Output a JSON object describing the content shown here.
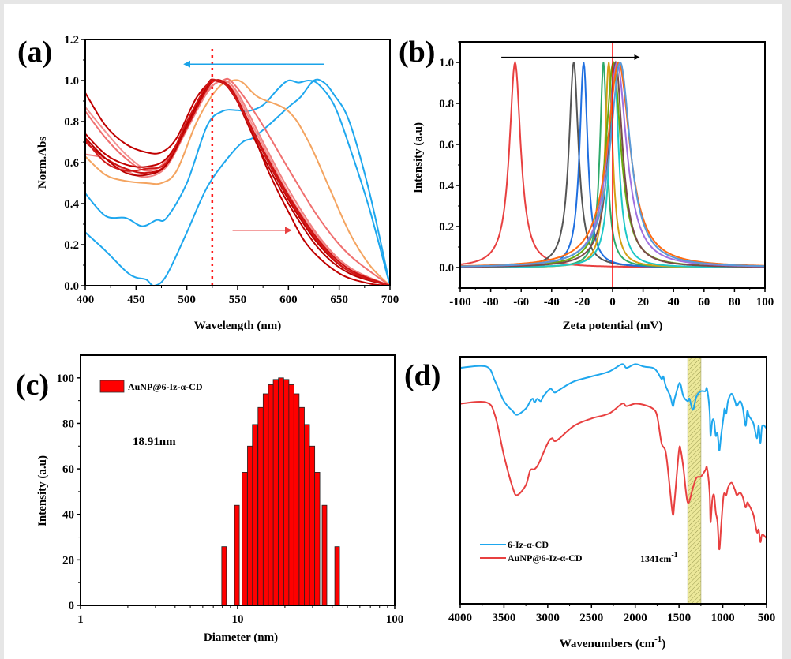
{
  "chart_data": [
    {
      "panel": "(a)",
      "type": "line",
      "title": "",
      "xlabel": "Wavelength (nm)",
      "ylabel": "Norm.Abs",
      "xlim": [
        400,
        700
      ],
      "ylim": [
        0.0,
        1.2
      ],
      "xticks": [
        400,
        450,
        500,
        550,
        600,
        650,
        700
      ],
      "yticks": [
        0.0,
        0.2,
        0.4,
        0.6,
        0.8,
        1.0,
        1.2
      ],
      "xtick_labels": [
        "400",
        "450",
        "500",
        "550",
        "600",
        "650",
        "700"
      ],
      "ytick_labels": [
        "0.0",
        "0.2",
        "0.4",
        "0.6",
        "0.8",
        "1.0",
        "1.2"
      ],
      "annotations": [
        {
          "type": "vline-dotted",
          "x": 525,
          "color": "#ff1a1a"
        },
        {
          "type": "arrow",
          "direction": "left",
          "from": [
            635,
            1.08
          ],
          "to": [
            500,
            1.08
          ],
          "color": "#1aa3e8"
        },
        {
          "type": "arrow",
          "direction": "right",
          "from": [
            545,
            0.27
          ],
          "to": [
            600,
            0.27
          ],
          "color": "#e84040"
        }
      ],
      "series": [
        {
          "name": "blue-1",
          "color": "#1ea7ee",
          "x": [
            400,
            420,
            440,
            450,
            460,
            468,
            480,
            500,
            520,
            540,
            555,
            565,
            580,
            600,
            612,
            625,
            635,
            645,
            660,
            680,
            700
          ],
          "y": [
            0.26,
            0.17,
            0.07,
            0.04,
            0.03,
            0.0,
            0.05,
            0.26,
            0.48,
            0.62,
            0.7,
            0.72,
            0.78,
            0.87,
            0.92,
            1.0,
            0.99,
            0.93,
            0.8,
            0.45,
            0.0
          ]
        },
        {
          "name": "blue-2",
          "color": "#1ea7ee",
          "x": [
            400,
            420,
            440,
            456,
            470,
            480,
            500,
            520,
            535,
            550,
            560,
            575,
            590,
            600,
            610,
            620,
            630,
            645,
            660,
            680,
            700
          ],
          "y": [
            0.45,
            0.34,
            0.33,
            0.29,
            0.32,
            0.33,
            0.5,
            0.78,
            0.85,
            0.855,
            0.85,
            0.88,
            0.96,
            1.0,
            0.99,
            1.0,
            0.98,
            0.88,
            0.68,
            0.37,
            0.0
          ]
        },
        {
          "name": "orange",
          "color": "#f4a460",
          "x": [
            400,
            420,
            440,
            460,
            475,
            490,
            510,
            530,
            545,
            555,
            570,
            600,
            620,
            640,
            660,
            680,
            700
          ],
          "y": [
            0.63,
            0.54,
            0.51,
            0.5,
            0.5,
            0.56,
            0.8,
            0.96,
            1.0,
            0.99,
            0.92,
            0.85,
            0.7,
            0.48,
            0.26,
            0.1,
            0.0
          ]
        },
        {
          "name": "salmon",
          "color": "#f07070",
          "x": [
            400,
            420,
            440,
            460,
            480,
            500,
            520,
            535,
            545,
            570,
            600,
            630,
            660,
            700
          ],
          "y": [
            0.85,
            0.72,
            0.62,
            0.56,
            0.61,
            0.78,
            0.95,
            1.0,
            0.99,
            0.82,
            0.57,
            0.33,
            0.15,
            0.0
          ]
        },
        {
          "name": "pink-1",
          "color": "#f49090",
          "x": [
            400,
            420,
            440,
            460,
            480,
            500,
            520,
            532,
            548,
            570,
            600,
            630,
            660,
            700
          ],
          "y": [
            0.87,
            0.75,
            0.64,
            0.57,
            0.6,
            0.78,
            0.96,
            1.0,
            0.94,
            0.73,
            0.45,
            0.23,
            0.08,
            0.0
          ]
        },
        {
          "name": "pink-2",
          "color": "#f08080",
          "x": [
            400,
            420,
            440,
            460,
            480,
            500,
            520,
            535,
            550,
            575,
            600,
            630,
            660,
            700
          ],
          "y": [
            0.64,
            0.62,
            0.56,
            0.53,
            0.58,
            0.76,
            0.94,
            1.0,
            0.94,
            0.7,
            0.47,
            0.24,
            0.09,
            0.0
          ]
        },
        {
          "name": "dark-red-1",
          "color": "#c00000",
          "x": [
            400,
            420,
            440,
            460,
            475,
            490,
            510,
            527,
            540,
            560,
            580,
            600,
            620,
            650,
            680,
            700
          ],
          "y": [
            0.94,
            0.78,
            0.69,
            0.65,
            0.65,
            0.72,
            0.92,
            1.0,
            0.97,
            0.8,
            0.56,
            0.36,
            0.19,
            0.06,
            0.01,
            0.0
          ]
        },
        {
          "name": "dark-red-2",
          "color": "#c00000",
          "x": [
            400,
            420,
            440,
            460,
            480,
            500,
            520,
            530,
            545,
            570,
            600,
            630,
            660,
            700
          ],
          "y": [
            0.74,
            0.64,
            0.59,
            0.58,
            0.62,
            0.78,
            0.97,
            1.0,
            0.95,
            0.7,
            0.42,
            0.2,
            0.07,
            0.0
          ]
        },
        {
          "name": "dark-red-3",
          "color": "#cc1010",
          "x": [
            400,
            420,
            440,
            460,
            480,
            500,
            520,
            530,
            545,
            570,
            600,
            630,
            660,
            700
          ],
          "y": [
            0.7,
            0.62,
            0.57,
            0.55,
            0.59,
            0.77,
            0.96,
            1.0,
            0.95,
            0.71,
            0.44,
            0.22,
            0.08,
            0.0
          ]
        },
        {
          "name": "dark-red-4",
          "color": "#b80000",
          "x": [
            400,
            420,
            440,
            460,
            480,
            500,
            520,
            528,
            545,
            570,
            600,
            630,
            660,
            700
          ],
          "y": [
            0.72,
            0.62,
            0.55,
            0.54,
            0.59,
            0.79,
            0.98,
            1.0,
            0.94,
            0.68,
            0.4,
            0.18,
            0.06,
            0.0
          ]
        },
        {
          "name": "dark-red-5",
          "color": "#d01818",
          "x": [
            400,
            420,
            440,
            460,
            480,
            500,
            520,
            530,
            545,
            570,
            600,
            630,
            660,
            700
          ],
          "y": [
            0.71,
            0.6,
            0.56,
            0.57,
            0.6,
            0.8,
            0.98,
            1.0,
            0.94,
            0.7,
            0.43,
            0.21,
            0.07,
            0.0
          ]
        }
      ]
    },
    {
      "panel": "(b)",
      "type": "line",
      "title": "",
      "xlabel": "Zeta potential (mV)",
      "ylabel": "Intensity (a.u)",
      "xlim": [
        -100,
        100
      ],
      "ylim": [
        -0.1,
        1.1
      ],
      "xticks": [
        -100,
        -80,
        -60,
        -40,
        -20,
        0,
        20,
        40,
        60,
        80,
        100
      ],
      "yticks": [
        0.0,
        0.2,
        0.4,
        0.6,
        0.8,
        1.0
      ],
      "xtick_labels": [
        "-100",
        "-80",
        "-60",
        "-40",
        "-20",
        "0",
        "20",
        "40",
        "60",
        "80",
        "100"
      ],
      "ytick_labels": [
        "0.0",
        "0.2",
        "0.4",
        "0.6",
        "0.8",
        "1.0"
      ],
      "annotations": [
        {
          "type": "vline",
          "x": 0,
          "color": "#ff0000"
        },
        {
          "type": "arrow",
          "direction": "right",
          "from": [
            -73,
            1.025
          ],
          "to": [
            16,
            1.025
          ],
          "color": "#000000"
        }
      ],
      "series_model": "lorentzian",
      "series": [
        {
          "name": "red",
          "color": "#e84040",
          "peak_mV": -64,
          "hwhm_mV": 4.5,
          "peak_intensity": 1.0
        },
        {
          "name": "gray",
          "color": "#555555",
          "peak_mV": -25.5,
          "hwhm_mV": 3.8,
          "peak_intensity": 1.0
        },
        {
          "name": "blue",
          "color": "#1f6fe0",
          "peak_mV": -19,
          "hwhm_mV": 3.2,
          "peak_intensity": 1.0
        },
        {
          "name": "green",
          "color": "#2eaa6a",
          "peak_mV": -6,
          "hwhm_mV": 2.8,
          "peak_intensity": 1.0
        },
        {
          "name": "gold",
          "color": "#d4a017",
          "peak_mV": -2.5,
          "hwhm_mV": 3.0,
          "peak_intensity": 1.0
        },
        {
          "name": "cyan",
          "color": "#1ec8c8",
          "peak_mV": 1.0,
          "hwhm_mV": 3.5,
          "peak_intensity": 1.0
        },
        {
          "name": "lime-green",
          "color": "#6aaa10",
          "peak_mV": 0.5,
          "hwhm_mV": 6.0,
          "peak_intensity": 1.0
        },
        {
          "name": "brown",
          "color": "#7a4a4a",
          "peak_mV": 2.0,
          "hwhm_mV": 5.5,
          "peak_intensity": 1.0
        },
        {
          "name": "purple",
          "color": "#a070e0",
          "peak_mV": 3.0,
          "hwhm_mV": 7.5,
          "peak_intensity": 1.0
        },
        {
          "name": "orange",
          "color": "#ff6a10",
          "peak_mV": 4.0,
          "hwhm_mV": 9.0,
          "peak_intensity": 1.0
        },
        {
          "name": "steel-blue",
          "color": "#5a9ad8",
          "peak_mV": 5.0,
          "hwhm_mV": 8.0,
          "peak_intensity": 1.0
        }
      ]
    },
    {
      "panel": "(c)",
      "type": "bar",
      "title": "",
      "xlabel": "Diameter (nm)",
      "ylabel": "Intensity (a.u)",
      "xscale": "log",
      "xlim": [
        1,
        100
      ],
      "ylim": [
        0,
        110
      ],
      "xticks": [
        1,
        10,
        100
      ],
      "xtick_labels": [
        "1",
        "10",
        "100"
      ],
      "yticks": [
        0,
        20,
        40,
        60,
        80,
        100
      ],
      "ytick_labels": [
        "0",
        "20",
        "40",
        "60",
        "80",
        "100"
      ],
      "legend": {
        "label": "AuNP@6-Iz-α-CD",
        "color": "#ff0000",
        "placement": "top-left"
      },
      "annotation_text": "18.91nm",
      "bar_color": "#ff0000",
      "x": [
        8.2,
        9.9,
        11.1,
        12.0,
        12.9,
        14.0,
        15.1,
        16.3,
        17.5,
        18.9,
        20.4,
        22.0,
        23.7,
        25.6,
        27.6,
        29.8,
        32.1,
        35.7,
        43.0
      ],
      "values": [
        25.8,
        44,
        58.5,
        70,
        79.5,
        87,
        93,
        97,
        99.3,
        100,
        99.3,
        97,
        93,
        87,
        79.5,
        70,
        58.5,
        44,
        25.8
      ]
    },
    {
      "panel": "(d)",
      "type": "line",
      "title": "",
      "xlabel": "Wavenumbers (cm",
      "xlabel_sup": "-1",
      "xlabel_tail": ")",
      "ylabel": "",
      "xlim": [
        4000,
        500
      ],
      "ylim": [
        0,
        1
      ],
      "y_units": "relative transmittance (no y ticks shown)",
      "xticks": [
        4000,
        3500,
        3000,
        2500,
        2000,
        1500,
        1000,
        500
      ],
      "xtick_labels": [
        "4000",
        "3500",
        "3000",
        "2500",
        "2000",
        "1500",
        "1000",
        "500"
      ],
      "highlight_band": {
        "from": 1400,
        "to": 1250,
        "color": "#e8e8a0",
        "hatch": true
      },
      "annotation_text": "1341cm",
      "annotation_sup": "-1",
      "legend_placement": "bottom-left",
      "series": [
        {
          "name": "6-Iz-α-CD",
          "color": "#1ea7ee",
          "x": [
            4000,
            3700,
            3600,
            3500,
            3400,
            3350,
            3250,
            3200,
            3170,
            3150,
            3120,
            3080,
            3050,
            2970,
            2920,
            2850,
            2700,
            2500,
            2300,
            2150,
            2100,
            2000,
            1900,
            1800,
            1750,
            1700,
            1680,
            1650,
            1600,
            1570,
            1550,
            1500,
            1480,
            1450,
            1400,
            1380,
            1341,
            1300,
            1250,
            1200,
            1180,
            1150,
            1140,
            1120,
            1100,
            1080,
            1060,
            1040,
            1020,
            990,
            980,
            960,
            940,
            900,
            860,
            840,
            800,
            770,
            740,
            720,
            700,
            650,
            610,
            590,
            570,
            550,
            500
          ],
          "y": [
            0.955,
            0.96,
            0.9,
            0.82,
            0.78,
            0.765,
            0.79,
            0.82,
            0.83,
            0.815,
            0.83,
            0.82,
            0.84,
            0.87,
            0.855,
            0.87,
            0.9,
            0.92,
            0.94,
            0.97,
            0.955,
            0.97,
            0.96,
            0.955,
            0.94,
            0.91,
            0.92,
            0.88,
            0.84,
            0.8,
            0.83,
            0.89,
            0.885,
            0.84,
            0.82,
            0.83,
            0.785,
            0.84,
            0.86,
            0.86,
            0.87,
            0.78,
            0.68,
            0.74,
            0.74,
            0.68,
            0.69,
            0.62,
            0.68,
            0.76,
            0.79,
            0.77,
            0.82,
            0.85,
            0.82,
            0.8,
            0.82,
            0.79,
            0.72,
            0.78,
            0.76,
            0.73,
            0.67,
            0.72,
            0.65,
            0.72,
            0.71
          ]
        },
        {
          "name": "AuNP@6-Iz-α-CD",
          "color": "#e84040",
          "x": [
            4000,
            3700,
            3600,
            3500,
            3400,
            3350,
            3250,
            3200,
            3150,
            3100,
            3000,
            2950,
            2900,
            2700,
            2500,
            2300,
            2150,
            2100,
            2000,
            1900,
            1800,
            1750,
            1700,
            1650,
            1600,
            1570,
            1550,
            1500,
            1480,
            1450,
            1400,
            1341,
            1300,
            1250,
            1200,
            1180,
            1150,
            1140,
            1120,
            1100,
            1080,
            1060,
            1040,
            1020,
            990,
            960,
            940,
            900,
            860,
            840,
            800,
            770,
            740,
            720,
            700,
            650,
            610,
            590,
            570,
            550,
            500
          ],
          "y": [
            0.81,
            0.815,
            0.76,
            0.6,
            0.47,
            0.44,
            0.48,
            0.54,
            0.545,
            0.57,
            0.65,
            0.67,
            0.66,
            0.72,
            0.75,
            0.77,
            0.81,
            0.8,
            0.81,
            0.805,
            0.79,
            0.76,
            0.65,
            0.61,
            0.45,
            0.36,
            0.42,
            0.62,
            0.62,
            0.55,
            0.41,
            0.47,
            0.51,
            0.515,
            0.54,
            0.55,
            0.45,
            0.33,
            0.42,
            0.44,
            0.37,
            0.33,
            0.22,
            0.31,
            0.44,
            0.44,
            0.47,
            0.49,
            0.46,
            0.44,
            0.45,
            0.43,
            0.39,
            0.41,
            0.4,
            0.36,
            0.29,
            0.3,
            0.25,
            0.28,
            0.265
          ]
        }
      ]
    }
  ]
}
